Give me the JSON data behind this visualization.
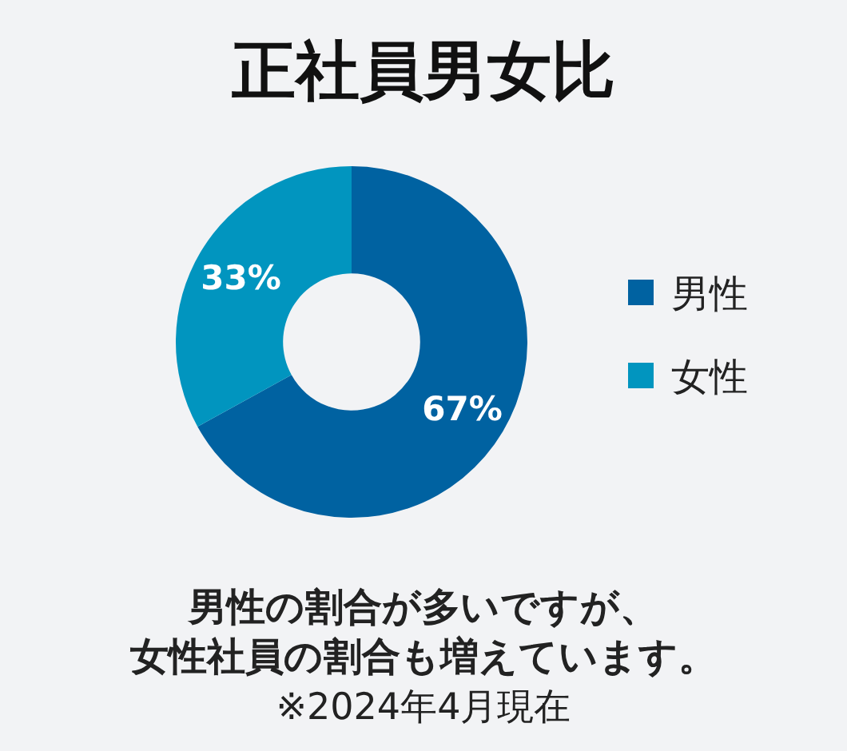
{
  "chart_data": {
    "type": "donut",
    "title": "正社員男女比",
    "categories": [
      "男性",
      "女性"
    ],
    "values": [
      67,
      33
    ],
    "colors": [
      "#0062a1",
      "#0195bf"
    ],
    "value_labels": [
      "67%",
      "33%"
    ],
    "legend": "right",
    "annotations": [
      "男性の割合が多いですが、",
      "女性社員の割合も増えています。",
      "※2024年4月現在"
    ]
  }
}
